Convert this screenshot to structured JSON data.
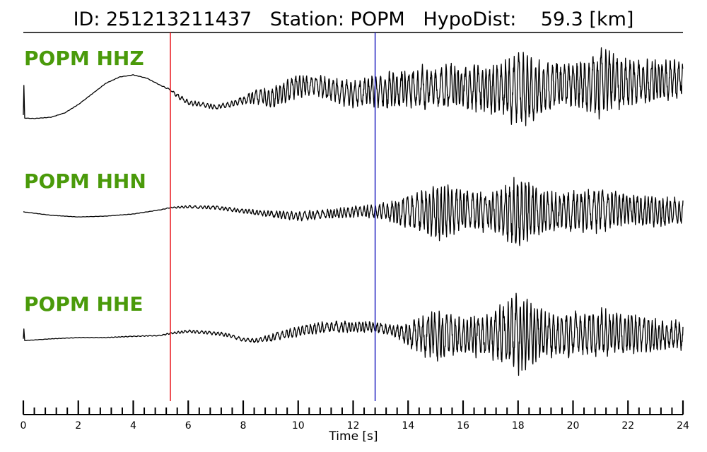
{
  "title": "ID: 251213211437   Station: POPM   HypoDist:    59.3 [km]",
  "colors": {
    "label": "#4a9a0a",
    "trace": "#000000",
    "p_pick": "#e8141a",
    "s_pick": "#2020c0"
  },
  "chart_data": {
    "type": "line",
    "title": "ID: 251213211437   Station: POPM   HypoDist:    59.3 [km]",
    "xlabel": "Time [s]",
    "ylabel": "",
    "xlim": [
      0,
      24
    ],
    "x_ticks": [
      0,
      2,
      4,
      6,
      8,
      10,
      12,
      14,
      16,
      18,
      20,
      22,
      24
    ],
    "minor_tick_step": 0.4,
    "grid": false,
    "picks": [
      {
        "phase": "P",
        "time": 5.35,
        "color": "#e8141a"
      },
      {
        "phase": "S",
        "time": 12.8,
        "color": "#2020c0"
      }
    ],
    "series": [
      {
        "name": "POPM HHZ",
        "amplitude_scale": 0.75,
        "x": [
          0,
          0.02,
          0.05,
          0.4,
          1,
          1.5,
          2,
          2.5,
          3,
          3.5,
          4,
          4.5,
          5,
          5.35,
          5.6,
          6,
          6.5,
          7,
          7.5,
          8,
          8.5,
          9,
          9.5,
          10,
          10.5,
          11,
          11.5,
          12,
          12.4,
          12.8,
          13.5,
          14,
          14.5,
          15,
          15.5,
          16,
          16.5,
          17,
          17.5,
          18,
          18.5,
          19,
          19.5,
          20,
          20.5,
          21,
          21.5,
          22,
          22.5,
          23,
          23.5,
          24
        ],
        "y": [
          -0.55,
          0.15,
          -0.62,
          -0.63,
          -0.6,
          -0.5,
          -0.3,
          -0.05,
          0.2,
          0.35,
          0.4,
          0.32,
          0.15,
          0.05,
          -0.1,
          -0.25,
          -0.3,
          -0.36,
          -0.3,
          -0.2,
          -0.1,
          -0.15,
          0.0,
          0.15,
          0.15,
          0.1,
          0.0,
          -0.05,
          0.0,
          0.0,
          0.05,
          0.05,
          0.1,
          0.05,
          0.15,
          0.1,
          0.12,
          0.05,
          0.1,
          0.0,
          0.1,
          0.1,
          0.2,
          0.15,
          0.15,
          0.2,
          0.25,
          0.2,
          0.25,
          0.25,
          0.3,
          0.3
        ],
        "noise": [
          0.003,
          0.003,
          0.003,
          0.004,
          0.004,
          0.004,
          0.004,
          0.004,
          0.004,
          0.004,
          0.004,
          0.004,
          0.005,
          0.02,
          0.05,
          0.06,
          0.05,
          0.05,
          0.06,
          0.09,
          0.16,
          0.22,
          0.25,
          0.25,
          0.22,
          0.25,
          0.28,
          0.3,
          0.3,
          0.35,
          0.42,
          0.42,
          0.45,
          0.45,
          0.48,
          0.5,
          0.5,
          0.5,
          0.6,
          0.8,
          0.7,
          0.55,
          0.5,
          0.5,
          0.6,
          0.75,
          0.6,
          0.55,
          0.5,
          0.45,
          0.42,
          0.42
        ]
      },
      {
        "name": "POPM HHN",
        "amplitude_scale": 0.75,
        "x": [
          0,
          1,
          2,
          3,
          4,
          5,
          5.35,
          6,
          7,
          8,
          9,
          10,
          11,
          12,
          12.8,
          13.5,
          14,
          15,
          16,
          17,
          18,
          18.5,
          19,
          20,
          21,
          22,
          23,
          24
        ],
        "y": [
          0.0,
          -0.08,
          -0.12,
          -0.1,
          -0.05,
          0.05,
          0.1,
          0.12,
          0.1,
          0.02,
          -0.05,
          -0.1,
          -0.05,
          0.0,
          0.02,
          0.0,
          0.0,
          0.0,
          0.05,
          0.0,
          0.0,
          0.0,
          0.0,
          0.0,
          0.05,
          0.05,
          0.0,
          0.0
        ],
        "noise": [
          0.003,
          0.003,
          0.003,
          0.003,
          0.004,
          0.004,
          0.01,
          0.03,
          0.04,
          0.05,
          0.07,
          0.1,
          0.1,
          0.12,
          0.15,
          0.25,
          0.35,
          0.65,
          0.45,
          0.4,
          0.8,
          0.65,
          0.45,
          0.45,
          0.45,
          0.35,
          0.35,
          0.3
        ]
      },
      {
        "name": "POPM HHE",
        "amplitude_scale": 0.75,
        "x": [
          0,
          0.02,
          0.05,
          1,
          2,
          3,
          4,
          5,
          5.35,
          6,
          7,
          7.5,
          8,
          8.5,
          9,
          10,
          11,
          12,
          12.8,
          13.5,
          14,
          15,
          16,
          17,
          18,
          18.5,
          19,
          20,
          21,
          22,
          23,
          24
        ],
        "y": [
          -0.08,
          0.15,
          -0.12,
          -0.08,
          -0.05,
          -0.05,
          -0.02,
          0.0,
          0.05,
          0.1,
          0.05,
          0.0,
          -0.1,
          -0.12,
          -0.05,
          0.1,
          0.2,
          0.2,
          0.2,
          0.1,
          0.0,
          0.0,
          0.0,
          0.0,
          0.05,
          0.05,
          0.0,
          0.05,
          0.05,
          0.05,
          0.0,
          0.0
        ],
        "noise": [
          0.003,
          0.003,
          0.003,
          0.004,
          0.005,
          0.006,
          0.008,
          0.01,
          0.02,
          0.03,
          0.04,
          0.04,
          0.04,
          0.05,
          0.08,
          0.12,
          0.12,
          0.12,
          0.12,
          0.12,
          0.25,
          0.55,
          0.4,
          0.5,
          0.85,
          0.7,
          0.5,
          0.5,
          0.5,
          0.45,
          0.35,
          0.3
        ]
      }
    ]
  }
}
